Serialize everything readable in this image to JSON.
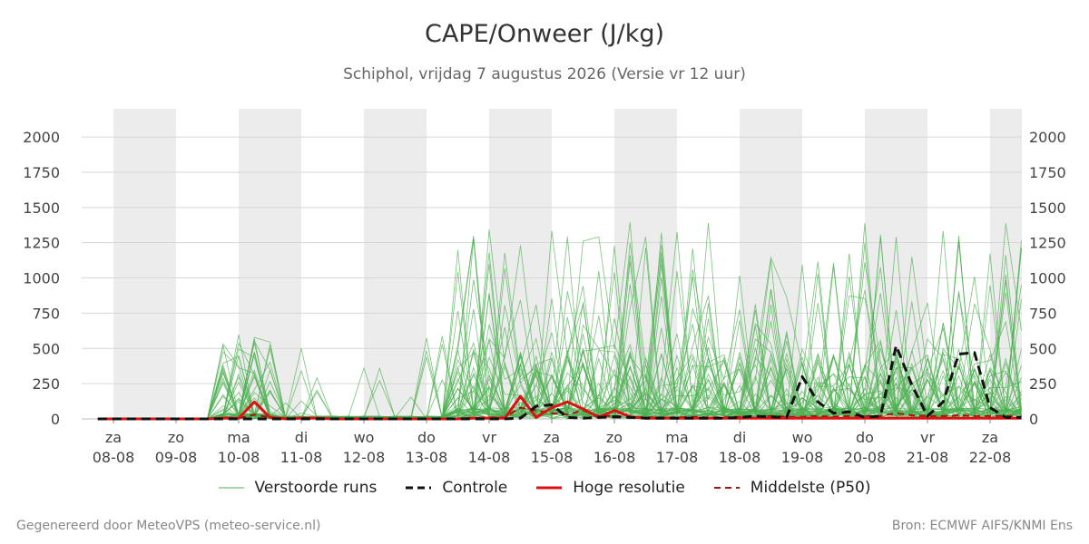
{
  "title": "CAPE/Onweer (J/kg)",
  "subtitle": "Schiphol, vrijdag  7 augustus 2026 (Versie vr 12 uur)",
  "footer": {
    "left": "Gegenereerd door MeteoVPS (meteo-service.nl)",
    "right": "Bron: ECMWF AIFS/KNMI Ens"
  },
  "legend": [
    {
      "label": "Verstoorde runs",
      "color": "#4caf50",
      "style": "thin"
    },
    {
      "label": "Controle",
      "color": "#111111",
      "style": "dashed"
    },
    {
      "label": "Hoge resolutie",
      "color": "#dd1111",
      "style": "solid"
    },
    {
      "label": "Middelste (P50)",
      "color": "#aa1111",
      "style": "dashed-thin"
    }
  ],
  "chart_data": {
    "type": "line",
    "title": "CAPE/Onweer (J/kg)",
    "ylim": [
      0,
      2200
    ],
    "yticks": [
      0,
      250,
      500,
      750,
      1000,
      1250,
      1500,
      1750,
      2000
    ],
    "xlim_days": [
      -0.25,
      14.5
    ],
    "x_ticks": [
      {
        "day": "za",
        "date": "08-08"
      },
      {
        "day": "zo",
        "date": "09-08"
      },
      {
        "day": "ma",
        "date": "10-08"
      },
      {
        "day": "di",
        "date": "11-08"
      },
      {
        "day": "wo",
        "date": "12-08"
      },
      {
        "day": "do",
        "date": "13-08"
      },
      {
        "day": "vr",
        "date": "14-08"
      },
      {
        "day": "za",
        "date": "15-08"
      },
      {
        "day": "zo",
        "date": "16-08"
      },
      {
        "day": "ma",
        "date": "17-08"
      },
      {
        "day": "di",
        "date": "18-08"
      },
      {
        "day": "wo",
        "date": "19-08"
      },
      {
        "day": "do",
        "date": "20-08"
      },
      {
        "day": "vr",
        "date": "21-08"
      },
      {
        "day": "za",
        "date": "22-08"
      }
    ],
    "shaded_day_bands": [
      0,
      2,
      4,
      6,
      8,
      10,
      12,
      14
    ],
    "series": [
      {
        "name": "Controle",
        "color": "#111111",
        "x": [
          -0.25,
          0,
          0.25,
          0.5,
          0.75,
          1,
          1.25,
          1.5,
          1.75,
          2,
          2.25,
          2.5,
          2.75,
          3,
          3.25,
          3.5,
          3.75,
          4,
          4.25,
          4.5,
          4.75,
          5,
          5.25,
          5.5,
          5.75,
          6,
          6.25,
          6.5,
          6.75,
          7,
          7.25,
          7.5,
          7.75,
          8,
          8.25,
          8.5,
          8.75,
          9,
          9.25,
          9.5,
          9.75,
          10,
          10.25,
          10.5,
          10.75,
          11,
          11.25,
          11.5,
          11.75,
          12,
          12.25,
          12.5,
          12.75,
          13,
          13.25,
          13.5,
          13.75,
          14,
          14.25,
          14.5
        ],
        "y": [
          0,
          0,
          0,
          0,
          0,
          0,
          0,
          0,
          0,
          0,
          0,
          0,
          0,
          0,
          0,
          0,
          0,
          0,
          0,
          0,
          0,
          0,
          0,
          0,
          0,
          0,
          0,
          5,
          90,
          100,
          10,
          5,
          10,
          15,
          10,
          5,
          5,
          5,
          5,
          5,
          5,
          10,
          20,
          15,
          10,
          300,
          120,
          40,
          50,
          10,
          20,
          520,
          240,
          20,
          120,
          460,
          470,
          80,
          10,
          10
        ]
      },
      {
        "name": "Hoge resolutie",
        "color": "#dd1111",
        "x": [
          -0.25,
          0,
          0.25,
          0.5,
          0.75,
          1,
          1.25,
          1.5,
          1.75,
          2,
          2.25,
          2.5,
          2.75,
          3,
          3.25,
          3.5,
          3.75,
          4,
          4.25,
          4.5,
          4.75,
          5,
          5.25,
          5.5,
          5.75,
          6,
          6.25,
          6.5,
          6.75,
          7,
          7.25,
          7.5,
          7.75,
          8,
          8.25,
          8.5,
          8.75,
          9,
          9.25,
          9.5,
          9.75,
          10,
          10.25,
          10.5,
          10.75,
          11,
          11.25,
          11.5,
          11.75,
          12,
          12.25,
          12.5,
          12.75,
          13,
          13.25,
          13.5,
          13.75,
          14,
          14.25,
          14.5
        ],
        "y": [
          0,
          0,
          0,
          0,
          0,
          0,
          0,
          0,
          5,
          5,
          120,
          10,
          0,
          5,
          5,
          0,
          0,
          0,
          0,
          0,
          0,
          0,
          0,
          0,
          5,
          5,
          5,
          160,
          10,
          80,
          120,
          70,
          10,
          60,
          15,
          5,
          5,
          5,
          5,
          5,
          5,
          5,
          5,
          5,
          5,
          5,
          5,
          5,
          5,
          5,
          5,
          5,
          5,
          5,
          5,
          5,
          5,
          5,
          5,
          5
        ]
      },
      {
        "name": "Middelste (P50)",
        "color": "#aa1111",
        "x": [
          -0.25,
          0,
          0.25,
          0.5,
          0.75,
          1,
          1.25,
          1.5,
          1.75,
          2,
          2.25,
          2.5,
          2.75,
          3,
          3.25,
          3.5,
          3.75,
          4,
          4.25,
          4.5,
          4.75,
          5,
          5.25,
          5.5,
          5.75,
          6,
          6.25,
          6.5,
          6.75,
          7,
          7.25,
          7.5,
          7.75,
          8,
          8.25,
          8.5,
          8.75,
          9,
          9.25,
          9.5,
          9.75,
          10,
          10.25,
          10.5,
          10.75,
          11,
          11.25,
          11.5,
          11.75,
          12,
          12.25,
          12.5,
          12.75,
          13,
          13.25,
          13.5,
          13.75,
          14,
          14.25,
          14.5
        ],
        "y": [
          0,
          0,
          0,
          0,
          0,
          0,
          0,
          0,
          5,
          5,
          30,
          10,
          5,
          5,
          5,
          0,
          0,
          0,
          0,
          0,
          0,
          0,
          0,
          0,
          5,
          10,
          10,
          80,
          60,
          40,
          30,
          60,
          20,
          20,
          15,
          10,
          10,
          10,
          15,
          10,
          10,
          15,
          15,
          20,
          15,
          15,
          20,
          15,
          20,
          20,
          20,
          40,
          25,
          20,
          20,
          25,
          20,
          20,
          20,
          15
        ]
      }
    ]
  }
}
